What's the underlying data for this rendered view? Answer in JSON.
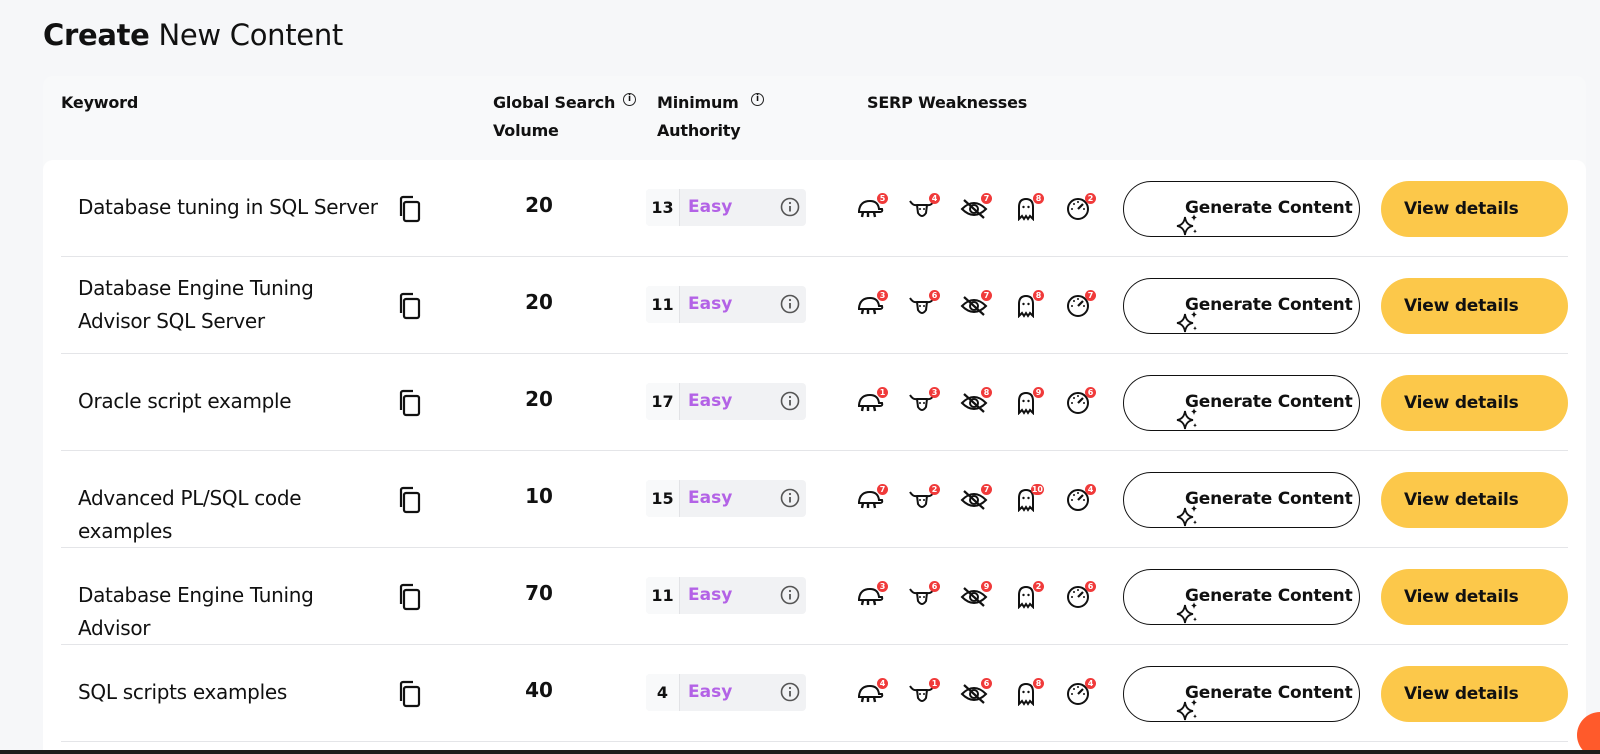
{
  "page": {
    "title_bold": "Create",
    "title_rest": "New Content"
  },
  "columns": {
    "keyword": "Keyword",
    "volume_line1": "Global Search",
    "volume_line2": "Volume",
    "authority_line1": "Minimum",
    "authority_line2": "Authority",
    "weaknesses": "SERP Weaknesses"
  },
  "buttons": {
    "generate": "Generate Content",
    "view": "View details"
  },
  "icons": {
    "copy": "copy-icon",
    "info": "info-icon",
    "weaknesses": [
      "slow-turtle-icon",
      "bull-icon",
      "hidden-eye-icon",
      "ghost-icon",
      "speedometer-icon"
    ],
    "generate": "sparkle-icon",
    "view": "chevron-right-icon"
  },
  "colors": {
    "accent_yellow": "#fcc84a",
    "level_purple": "#b362e6",
    "badge_red": "#f03a3a"
  },
  "rows": [
    {
      "keyword": "Database tuning in SQL Server",
      "volume": "20",
      "authority": "13",
      "level": "Easy",
      "badges": [
        "5",
        "4",
        "7",
        "8",
        "2"
      ]
    },
    {
      "keyword": "Database Engine Tuning Advisor SQL Server",
      "volume": "20",
      "authority": "11",
      "level": "Easy",
      "badges": [
        "3",
        "6",
        "7",
        "8",
        "7"
      ]
    },
    {
      "keyword": "Oracle script example",
      "volume": "20",
      "authority": "17",
      "level": "Easy",
      "badges": [
        "1",
        "3",
        "8",
        "9",
        "6"
      ]
    },
    {
      "keyword": "Advanced PL/SQL code examples",
      "volume": "10",
      "authority": "15",
      "level": "Easy",
      "badges": [
        "7",
        "2",
        "7",
        "10",
        "4"
      ]
    },
    {
      "keyword": "Database Engine Tuning Advisor",
      "volume": "70",
      "authority": "11",
      "level": "Easy",
      "badges": [
        "3",
        "6",
        "9",
        "2",
        "6"
      ]
    },
    {
      "keyword": "SQL scripts examples",
      "volume": "40",
      "authority": "4",
      "level": "Easy",
      "badges": [
        "4",
        "1",
        "6",
        "8",
        "4"
      ]
    }
  ]
}
